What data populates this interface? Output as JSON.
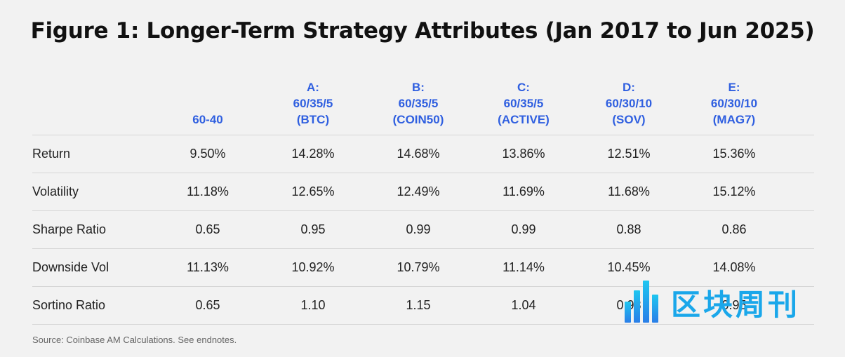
{
  "title": "Figure 1: Longer-Term Strategy Attributes (Jan 2017 to Jun 2025)",
  "columns": [
    {
      "lines": [
        "60-40"
      ]
    },
    {
      "lines": [
        "A:",
        "60/35/5",
        "(BTC)"
      ]
    },
    {
      "lines": [
        "B:",
        "60/35/5",
        "(COIN50)"
      ]
    },
    {
      "lines": [
        "C:",
        "60/35/5",
        "(ACTIVE)"
      ]
    },
    {
      "lines": [
        "D:",
        "60/30/10",
        "(SOV)"
      ]
    },
    {
      "lines": [
        "E:",
        "60/30/10",
        "(MAG7)"
      ]
    }
  ],
  "rows": [
    {
      "label": "Return",
      "values": [
        "9.50%",
        "14.28%",
        "14.68%",
        "13.86%",
        "12.51%",
        "15.36%"
      ]
    },
    {
      "label": "Volatility",
      "values": [
        "11.18%",
        "12.65%",
        "12.49%",
        "11.69%",
        "11.68%",
        "15.12%"
      ]
    },
    {
      "label": "Sharpe Ratio",
      "values": [
        "0.65",
        "0.95",
        "0.99",
        "0.99",
        "0.88",
        "0.86"
      ]
    },
    {
      "label": "Downside Vol",
      "values": [
        "11.13%",
        "10.92%",
        "10.79%",
        "11.14%",
        "10.45%",
        "14.08%"
      ]
    },
    {
      "label": "Sortino Ratio",
      "values": [
        "0.65",
        "1.10",
        "1.15",
        "1.04",
        "0.98",
        "0.95"
      ]
    }
  ],
  "source": "Source: Coinbase AM Calculations. See endnotes.",
  "watermark": {
    "text": "区块周刊",
    "color": "#1aa7ea"
  },
  "colors": {
    "header_accent": "#2f5fe0",
    "background": "#f2f2f2"
  }
}
